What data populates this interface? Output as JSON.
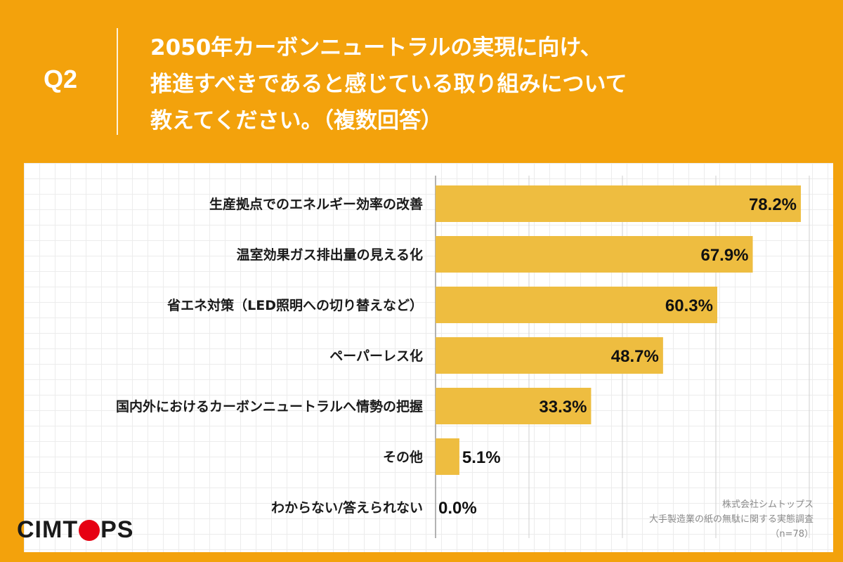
{
  "header": {
    "question_label": "Q2",
    "title_lines": [
      "2050年カーボンニュートラルの実現に向け、",
      "推進すべきであると感じている取り組みについて",
      "教えてください。（複数回答）"
    ]
  },
  "logo": {
    "before_o": "CIMT",
    "after_o": "PS"
  },
  "source": {
    "company": "株式会社シムトップス",
    "survey": "大手製造業の紙の無駄に関する実態調査",
    "sample": "（n=78）"
  },
  "colors": {
    "background": "#f3a20c",
    "bar": "#eebd40",
    "logo_accent": "#e60012"
  },
  "chart_data": {
    "type": "bar",
    "orientation": "horizontal",
    "categories": [
      "生産拠点でのエネルギー効率の改善",
      "温室効果ガス排出量の見える化",
      "省エネ対策（LED照明への切り替えなど）",
      "ペーパーレス化",
      "国内外におけるカーボンニュートラルへ情勢の把握",
      "その他",
      "わからない/答えられない"
    ],
    "values": [
      78.2,
      67.9,
      60.3,
      48.7,
      33.3,
      5.1,
      0.0
    ],
    "value_labels": [
      "78.2%",
      "67.9%",
      "60.3%",
      "48.7%",
      "33.3%",
      "5.1%",
      "0.0%"
    ],
    "xlim": [
      0,
      80
    ],
    "grid": true
  }
}
